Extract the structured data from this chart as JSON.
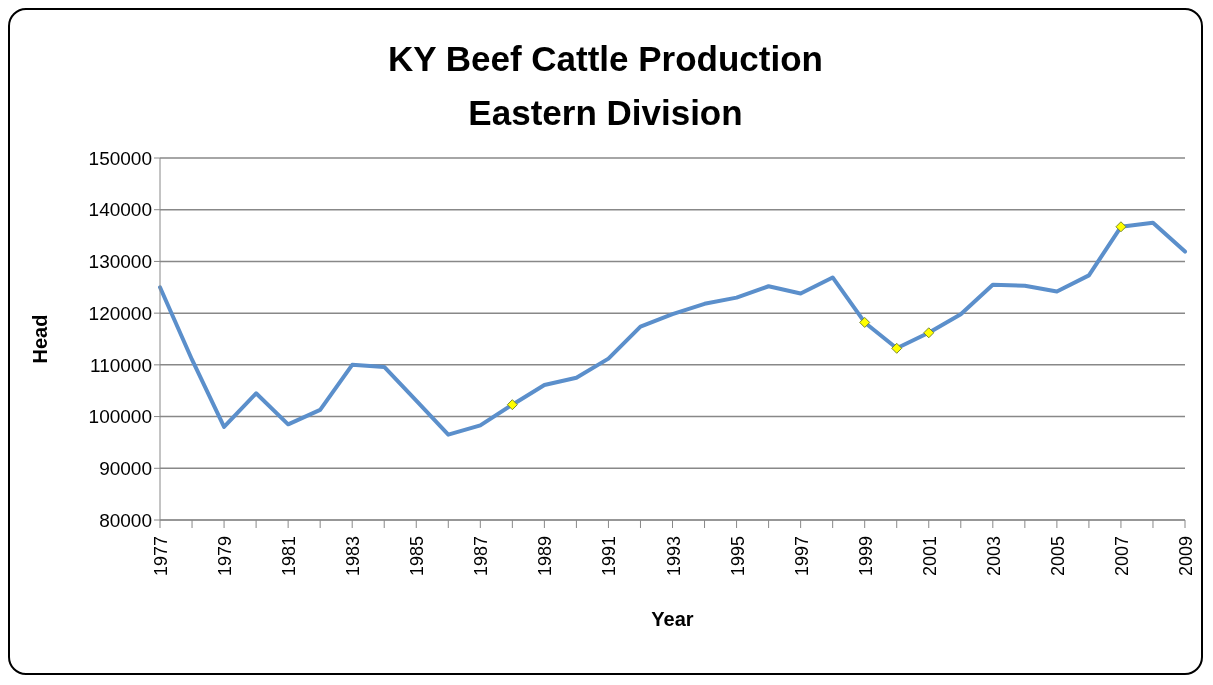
{
  "chart_data": {
    "type": "line",
    "title": "KY Beef Cattle Production\nEastern Division",
    "xlabel": "Year",
    "ylabel": "Head",
    "categories": [
      "1977",
      null,
      "1979",
      null,
      "1981",
      null,
      "1983",
      null,
      "1985",
      null,
      "1987",
      null,
      "1989",
      null,
      "1991",
      null,
      "1993",
      null,
      "1995",
      null,
      "1997",
      null,
      "1999",
      null,
      "2001",
      null,
      "2003",
      null,
      "2005",
      null,
      "2007",
      null,
      "2009"
    ],
    "series": [
      {
        "color": "#5b8fcb",
        "values": [
          125000,
          111000,
          98000,
          104500,
          98500,
          101300,
          110000,
          109600,
          103100,
          96500,
          98300,
          102300,
          106100,
          107500,
          111200,
          117400,
          119800,
          121800,
          123000,
          125200,
          123800,
          126900,
          118200,
          113200,
          116200,
          119800,
          125500,
          125300,
          124200,
          127300,
          136700,
          137500,
          131900
        ],
        "marker": "none"
      },
      {
        "type": "scatter",
        "color": "#ffff00",
        "marker": "diamond",
        "values": [
          null,
          null,
          null,
          null,
          null,
          null,
          null,
          null,
          null,
          null,
          null,
          102300,
          null,
          null,
          null,
          null,
          null,
          null,
          null,
          null,
          null,
          null,
          118200,
          113200,
          116200,
          null,
          null,
          null,
          null,
          null,
          136700,
          null,
          null
        ]
      }
    ],
    "ylim": [
      80000,
      150000
    ],
    "yticks": [
      80000,
      90000,
      100000,
      110000,
      120000,
      130000,
      140000,
      150000
    ],
    "grid": "y"
  }
}
